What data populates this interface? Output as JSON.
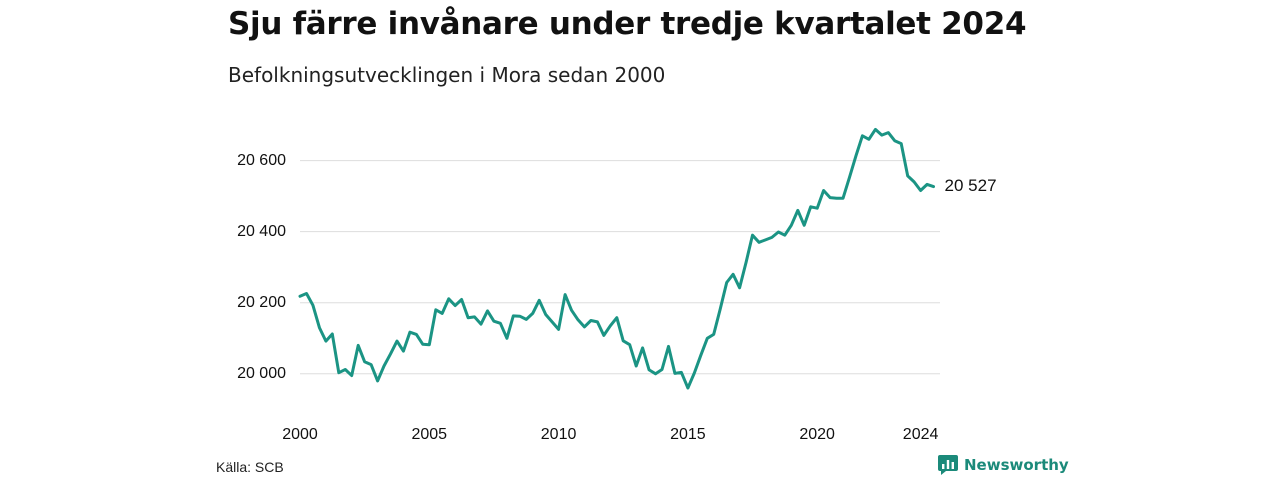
{
  "header": {
    "title": "Sju färre invånare under tredje kvartalet 2024",
    "subtitle": "Befolkningsutvecklingen i Mora sedan 2000"
  },
  "footer": {
    "source": "Källa: SCB",
    "brand": "Newsworthy"
  },
  "colors": {
    "line": "#1b9484",
    "grid": "#dddddd",
    "brand": "#1b8a7a"
  },
  "chart_data": {
    "type": "line",
    "title": "Sju färre invånare under tredje kvartalet 2024",
    "subtitle": "Befolkningsutvecklingen i Mora sedan 2000",
    "xlabel": "",
    "ylabel": "",
    "grid": true,
    "xlim": [
      2000,
      2024.75
    ],
    "ylim": [
      19960,
      20720
    ],
    "y_ticks": [
      20000,
      20200,
      20400,
      20600
    ],
    "y_tick_labels": [
      "20 000",
      "20 200",
      "20 400",
      "20 600"
    ],
    "x_ticks": [
      2000,
      2005,
      2010,
      2015,
      2020,
      2024
    ],
    "x_tick_labels": [
      "2000",
      "2005",
      "2010",
      "2015",
      "2020",
      "2024"
    ],
    "end_label": "20 527",
    "series": [
      {
        "x": [
          2000.0,
          2000.25,
          2000.5,
          2000.75,
          2001.0,
          2001.25,
          2001.5,
          2001.75,
          2002.0,
          2002.25,
          2002.5,
          2002.75,
          2003.0,
          2003.25,
          2003.5,
          2003.75,
          2004.0,
          2004.25,
          2004.5,
          2004.75,
          2005.0,
          2005.25,
          2005.5,
          2005.75,
          2006.0,
          2006.25,
          2006.5,
          2006.75,
          2007.0,
          2007.25,
          2007.5,
          2007.75,
          2008.0,
          2008.25,
          2008.5,
          2008.75,
          2009.0,
          2009.25,
          2009.5,
          2009.75,
          2010.0,
          2010.25,
          2010.5,
          2010.75,
          2011.0,
          2011.25,
          2011.5,
          2011.75,
          2012.0,
          2012.25,
          2012.5,
          2012.75,
          2013.0,
          2013.25,
          2013.5,
          2013.75,
          2014.0,
          2014.25,
          2014.5,
          2014.75,
          2015.0,
          2015.25,
          2015.5,
          2015.75,
          2016.0,
          2016.25,
          2016.5,
          2016.75,
          2017.0,
          2017.25,
          2017.5,
          2017.75,
          2018.0,
          2018.25,
          2018.5,
          2018.75,
          2019.0,
          2019.25,
          2019.5,
          2019.75,
          2020.0,
          2020.25,
          2020.5,
          2020.75,
          2021.0,
          2021.25,
          2021.5,
          2021.75,
          2022.0,
          2022.25,
          2022.5,
          2022.75,
          2023.0,
          2023.25,
          2023.5,
          2023.75,
          2024.0,
          2024.25,
          2024.5
        ],
        "values": [
          20218,
          20226,
          20193,
          20130,
          20092,
          20112,
          20003,
          20012,
          19995,
          20080,
          20034,
          20026,
          19980,
          20022,
          20056,
          20092,
          20064,
          20117,
          20111,
          20083,
          20082,
          20180,
          20170,
          20211,
          20192,
          20209,
          20158,
          20160,
          20140,
          20177,
          20148,
          20142,
          20100,
          20163,
          20162,
          20153,
          20170,
          20207,
          20167,
          20146,
          20125,
          20223,
          20179,
          20152,
          20132,
          20150,
          20146,
          20108,
          20135,
          20158,
          20093,
          20082,
          20022,
          20073,
          20011,
          20000,
          20012,
          20077,
          20001,
          20004,
          19960,
          20002,
          20052,
          20100,
          20111,
          20182,
          20257,
          20280,
          20242,
          20314,
          20390,
          20370,
          20377,
          20384,
          20399,
          20390,
          20418,
          20460,
          20418,
          20470,
          20466,
          20516,
          20496,
          20494,
          20494,
          20553,
          20614,
          20670,
          20660,
          20688,
          20672,
          20679,
          20656,
          20648,
          20557,
          20540,
          20516,
          20533,
          20527
        ]
      }
    ]
  }
}
